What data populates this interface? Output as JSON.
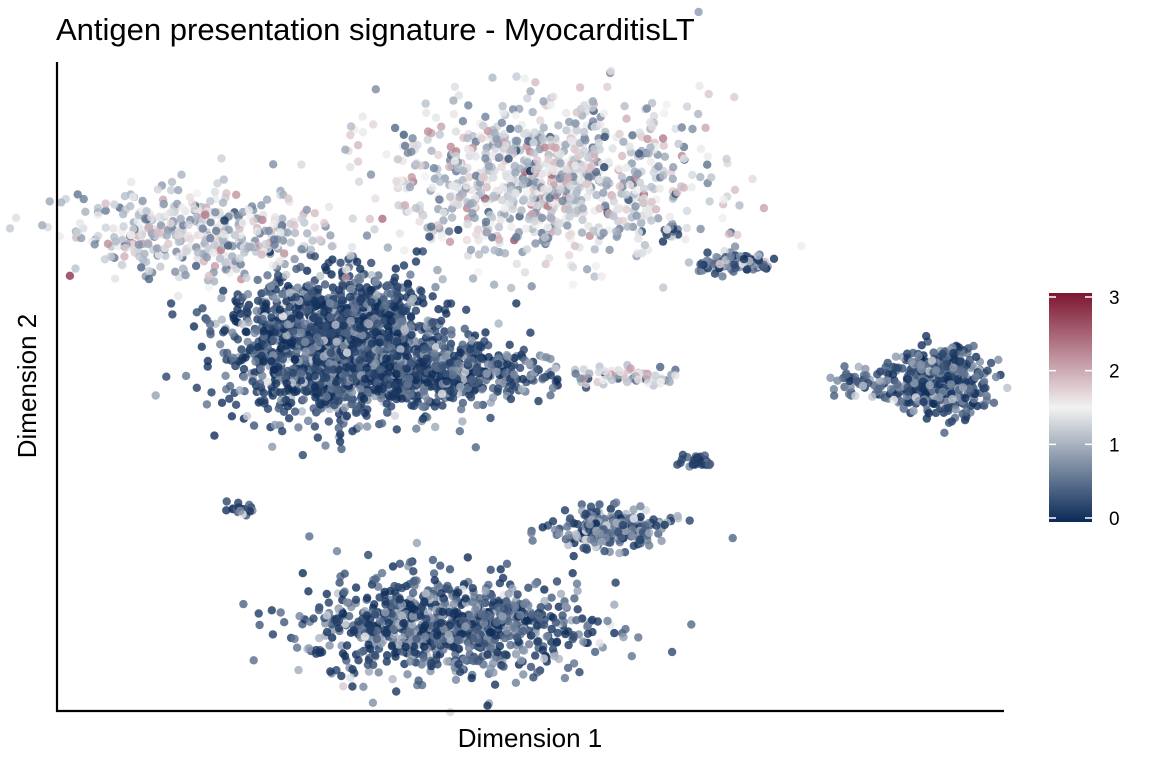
{
  "chart_data": {
    "type": "scatter",
    "title": "Antigen presentation signature - MyocarditisLT",
    "xlabel": "Dimension 1",
    "ylabel": "Dimension 2",
    "xlim": [
      0,
      100
    ],
    "ylim": [
      0,
      100
    ],
    "axis_ticks": false,
    "grid": false,
    "legend": {
      "type": "colorbar",
      "placement": "right",
      "title": "",
      "range": [
        0,
        3
      ],
      "ticks": [
        "0",
        "1",
        "2",
        "3"
      ]
    },
    "colors": {
      "low": "#0b2a57",
      "mid": "#f2f2f2",
      "high": "#7d1530",
      "axis": "#000000"
    },
    "clusters": [
      {
        "center": [
          29.5,
          56.5
        ],
        "spread": [
          11.5,
          10.5
        ],
        "count": 1800,
        "mean_score": 0.25
      },
      {
        "center": [
          40.5,
          52.0
        ],
        "spread": [
          11.0,
          4.2
        ],
        "count": 500,
        "mean_score": 0.3
      },
      {
        "center": [
          41.0,
          13.0
        ],
        "spread": [
          14.5,
          7.8
        ],
        "count": 900,
        "mean_score": 0.35
      },
      {
        "center": [
          58.5,
          28.0
        ],
        "spread": [
          6.0,
          3.0
        ],
        "count": 260,
        "mean_score": 0.45
      },
      {
        "center": [
          93.2,
          50.5
        ],
        "spread": [
          5.0,
          5.2
        ],
        "count": 480,
        "mean_score": 0.3
      },
      {
        "center": [
          84.5,
          51.0
        ],
        "spread": [
          3.0,
          2.0
        ],
        "count": 45,
        "mean_score": 0.45
      },
      {
        "center": [
          60.5,
          51.5
        ],
        "spread": [
          6.5,
          1.6
        ],
        "count": 60,
        "mean_score": 1.3
      },
      {
        "center": [
          67.8,
          38.5
        ],
        "spread": [
          1.8,
          1.0
        ],
        "count": 35,
        "mean_score": 0.25
      },
      {
        "center": [
          19.5,
          31.0
        ],
        "spread": [
          1.5,
          1.2
        ],
        "count": 18,
        "mean_score": 0.3
      },
      {
        "center": [
          71.5,
          69.0
        ],
        "spread": [
          4.0,
          1.5
        ],
        "count": 110,
        "mean_score": 0.55
      },
      {
        "center": [
          64.5,
          74.0
        ],
        "spread": [
          1.3,
          1.2
        ],
        "count": 18,
        "mean_score": 0.5
      },
      {
        "center": [
          15.0,
          73.5
        ],
        "spread": [
          13.0,
          6.5
        ],
        "count": 420,
        "mean_score": 1.2
      },
      {
        "center": [
          51.5,
          82.0
        ],
        "spread": [
          17.0,
          12.0
        ],
        "count": 900,
        "mean_score": 1.25
      }
    ]
  }
}
